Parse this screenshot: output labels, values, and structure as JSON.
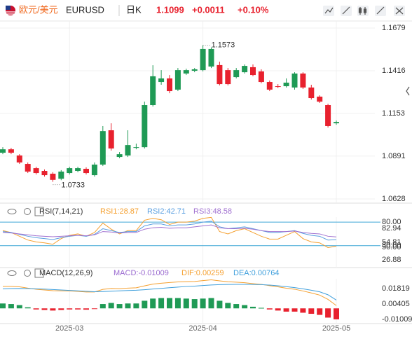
{
  "header": {
    "pair": "欧元/美元",
    "symbol": "EURUSD",
    "period": "日K",
    "price": "1.1099",
    "change": "+0.0011",
    "change_pct": "+0.10%"
  },
  "chart_data": [
    {
      "type": "candlestick",
      "categories": [
        null,
        null,
        null,
        null,
        null,
        null,
        null,
        null,
        "2025-03",
        null,
        null,
        null,
        null,
        null,
        null,
        null,
        null,
        null,
        null,
        null,
        null,
        null,
        null,
        null,
        "2025-04",
        null,
        null,
        null,
        null,
        null,
        null,
        null,
        null,
        null,
        null,
        null,
        null,
        null,
        null,
        null,
        "2025-05"
      ],
      "open": [
        1.0912,
        1.0933,
        1.0895,
        1.0843,
        1.0817,
        1.08,
        1.0783,
        1.0752,
        1.0787,
        1.08,
        1.0813,
        1.0774,
        1.0839,
        1.105,
        1.0886,
        1.0895,
        1.0942,
        1.0946,
        1.1205,
        1.1347,
        1.1369,
        1.13,
        1.1399,
        1.1416,
        1.142,
        1.1442,
        1.1451,
        1.142,
        1.1377,
        1.1407,
        1.1438,
        1.1412,
        1.1347,
        1.1321,
        1.1321,
        1.1313,
        1.1399,
        1.1313,
        1.1257,
        1.1205,
        1.1093
      ],
      "high": [
        1.0946,
        1.0942,
        1.0903,
        1.0852,
        1.0826,
        1.0809,
        1.0792,
        1.0805,
        1.0826,
        1.0826,
        1.0822,
        1.0852,
        1.1076,
        1.1093,
        1.0916,
        1.105,
        1.0968,
        1.1226,
        1.145,
        1.142,
        1.139,
        1.1433,
        1.1429,
        1.1433,
        1.1573,
        1.156,
        1.1472,
        1.1433,
        1.1433,
        1.1455,
        1.1455,
        1.1425,
        1.1356,
        1.1334,
        1.1369,
        1.1407,
        1.1407,
        1.133,
        1.1265,
        1.1213,
        1.111
      ],
      "low": [
        1.0903,
        1.0903,
        1.0843,
        1.0787,
        1.0778,
        1.0765,
        1.0733,
        1.0743,
        1.0778,
        1.0792,
        1.0778,
        1.0765,
        1.083,
        1.0925,
        1.0878,
        1.0886,
        1.0933,
        1.0938,
        1.1196,
        1.133,
        1.1278,
        1.1291,
        1.139,
        1.1407,
        1.1412,
        1.1433,
        1.1326,
        1.1326,
        1.1369,
        1.1399,
        1.1382,
        1.1339,
        1.1291,
        1.1309,
        1.1313,
        1.13,
        1.1304,
        1.1239,
        1.1218,
        1.1067,
        1.1084
      ],
      "close": [
        1.0933,
        1.0912,
        1.0852,
        1.0796,
        1.0787,
        1.0774,
        1.0745,
        1.0796,
        1.0817,
        1.0817,
        1.0787,
        1.0839,
        1.1045,
        1.0938,
        1.0903,
        1.0959,
        1.0946,
        1.1205,
        1.1382,
        1.1369,
        1.1291,
        1.142,
        1.142,
        1.1425,
        1.155,
        1.155,
        1.1334,
        1.1334,
        1.142,
        1.1446,
        1.139,
        1.1347,
        1.13,
        1.1317,
        1.1343,
        1.1399,
        1.1313,
        1.1248,
        1.1226,
        1.1076,
        1.1101
      ],
      "up_color": "#1f9a55",
      "down_color": "#e8212e",
      "ylim": [
        1.0602,
        1.1722
      ],
      "yticks": [
        1.1679,
        1.1416,
        1.1153,
        1.0891,
        1.0628
      ],
      "grid": true,
      "high_label": "1.1573",
      "low_label": "1.0733"
    },
    {
      "type": "line",
      "title": "RSI(7,14,21)",
      "series": [
        {
          "name": "RSI1:28.87",
          "color": "#f5a030",
          "values": [
            62,
            58,
            50,
            42,
            38,
            36,
            33,
            45,
            52,
            55,
            50,
            58,
            78,
            65,
            55,
            62,
            62,
            84,
            88,
            85,
            75,
            80,
            80,
            82,
            88,
            90,
            60,
            55,
            62,
            66,
            58,
            50,
            44,
            44,
            52,
            60,
            45,
            38,
            36,
            26,
            28.87
          ]
        },
        {
          "name": "RSI2:42.71",
          "color": "#5a9fe0",
          "values": [
            60,
            58,
            54,
            50,
            47,
            45,
            43,
            47,
            50,
            52,
            50,
            54,
            66,
            62,
            58,
            60,
            60,
            72,
            76,
            76,
            72,
            74,
            74,
            76,
            80,
            82,
            70,
            66,
            68,
            70,
            66,
            62,
            58,
            58,
            60,
            62,
            56,
            52,
            50,
            42,
            42.71
          ]
        },
        {
          "name": "RSI3:48.58",
          "color": "#a070d0",
          "values": [
            58,
            57,
            55,
            53,
            51,
            50,
            49,
            50,
            51,
            52,
            51,
            53,
            60,
            59,
            57,
            58,
            58,
            65,
            68,
            69,
            67,
            68,
            68,
            70,
            72,
            74,
            68,
            66,
            66,
            67,
            65,
            62,
            60,
            60,
            60,
            61,
            58,
            56,
            55,
            50,
            48.58
          ]
        }
      ],
      "ylim": [
        0,
        95
      ],
      "yticks": [
        {
          "value": 80,
          "label": "80.00"
        },
        {
          "value": 30,
          "label": "30.00"
        }
      ],
      "tags": [
        "82.94",
        "54.81",
        "50.00",
        "26.88"
      ],
      "grid_color": "#3fa7d6"
    },
    {
      "type": "macd",
      "title": "MACD(12,26,9)",
      "histogram": {
        "name": "MACD:-0.01009",
        "color": "#9a6ad0",
        "up_color": "#1f9a55",
        "down_color": "#e8212e",
        "values": [
          0.0045,
          0.004,
          0.003,
          0.001,
          -0.001,
          -0.0015,
          -0.002,
          -0.0015,
          -0.001,
          -0.001,
          -0.0012,
          -0.0005,
          0.004,
          0.005,
          0.004,
          0.0045,
          0.0045,
          0.007,
          0.009,
          0.0095,
          0.0095,
          0.0095,
          0.009,
          0.0085,
          0.009,
          0.0095,
          0.007,
          0.005,
          0.004,
          0.003,
          0.0015,
          0.0005,
          -0.001,
          -0.002,
          -0.003,
          -0.003,
          -0.004,
          -0.005,
          -0.006,
          -0.0085,
          -0.01009
        ]
      },
      "series": [
        {
          "name": "DIF:0.00259",
          "color": "#f5a030",
          "values": [
            0.02025,
            0.0202,
            0.0198,
            0.01865,
            0.01755,
            0.01695,
            0.0163,
            0.01615,
            0.016,
            0.0156,
            0.0151,
            0.01505,
            0.0175,
            0.0183,
            0.0181,
            0.01865,
            0.01895,
            0.0207,
            0.0223,
            0.02315,
            0.02375,
            0.02435,
            0.0246,
            0.02475,
            0.0255,
            0.02625,
            0.0253,
            0.0245,
            0.0241,
            0.0236,
            0.02275,
            0.02205,
            0.0209,
            0.0198,
            0.0185,
            0.0176,
            0.016,
            0.0142,
            0.0122,
            0.00825,
            0.00259
          ]
        },
        {
          "name": "DEA:0.00764",
          "color": "#3f9fdc",
          "values": [
            0.018,
            0.0182,
            0.0183,
            0.0182,
            0.018,
            0.0177,
            0.0173,
            0.0169,
            0.0165,
            0.0161,
            0.0157,
            0.0153,
            0.0155,
            0.0158,
            0.0161,
            0.0164,
            0.0167,
            0.0172,
            0.0178,
            0.0184,
            0.019,
            0.0196,
            0.0201,
            0.0205,
            0.021,
            0.0215,
            0.0218,
            0.022,
            0.0221,
            0.0221,
            0.022,
            0.0218,
            0.0214,
            0.0208,
            0.02,
            0.0191,
            0.018,
            0.0167,
            0.0152,
            0.0125,
            0.00764
          ]
        }
      ],
      "ylim": [
        -0.014,
        0.0356
      ],
      "yticks": [
        0.01819,
        0.00405,
        -0.01009
      ]
    }
  ]
}
